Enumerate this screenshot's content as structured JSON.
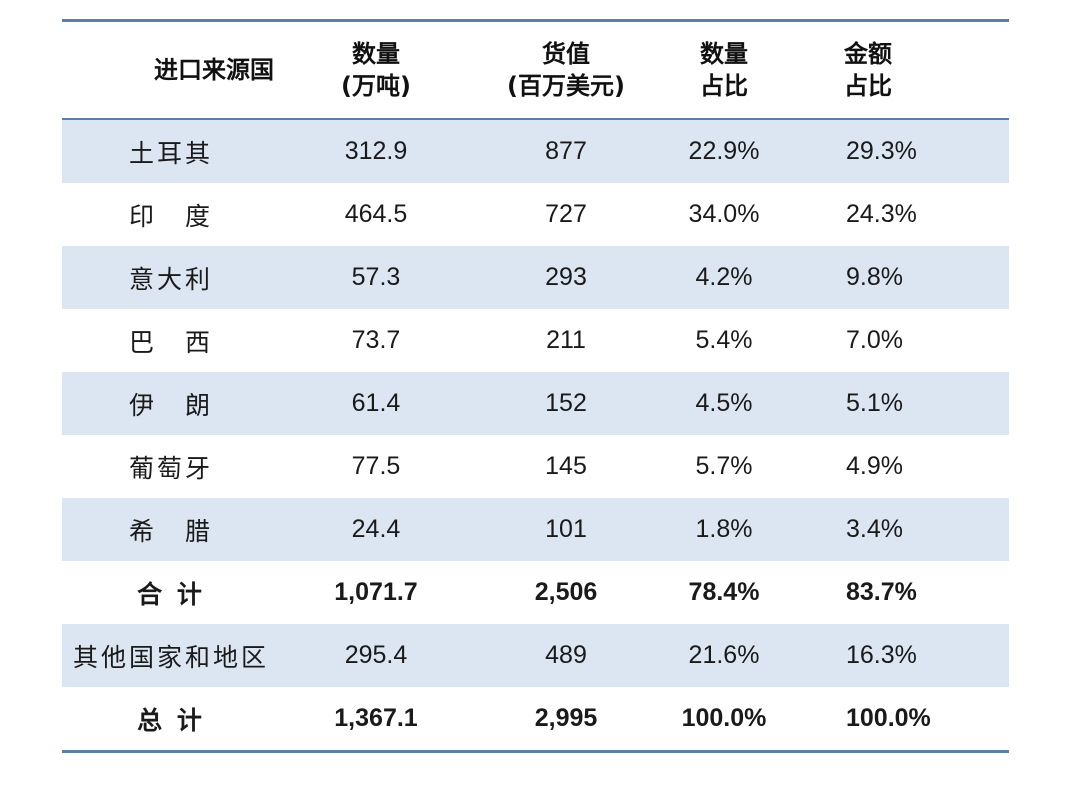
{
  "headers": [
    [
      "进口来源国"
    ],
    [
      "数量",
      "(万吨)"
    ],
    [
      "货值",
      "(百万美元)"
    ],
    [
      "数量",
      "占比"
    ],
    [
      "金额",
      "占比"
    ]
  ],
  "rows": [
    {
      "country": "土耳其",
      "qty": "312.9",
      "value": "877",
      "qty_share": "22.9%",
      "value_share": "29.3%",
      "shaded": true,
      "bold": false
    },
    {
      "country": "印　度",
      "qty": "464.5",
      "value": "727",
      "qty_share": "34.0%",
      "value_share": "24.3%",
      "shaded": false,
      "bold": false
    },
    {
      "country": "意大利",
      "qty": "57.3",
      "value": "293",
      "qty_share": "4.2%",
      "value_share": "9.8%",
      "shaded": true,
      "bold": false
    },
    {
      "country": "巴　西",
      "qty": "73.7",
      "value": "211",
      "qty_share": "5.4%",
      "value_share": "7.0%",
      "shaded": false,
      "bold": false
    },
    {
      "country": "伊　朗",
      "qty": "61.4",
      "value": "152",
      "qty_share": "4.5%",
      "value_share": "5.1%",
      "shaded": true,
      "bold": false
    },
    {
      "country": "葡萄牙",
      "qty": "77.5",
      "value": "145",
      "qty_share": "5.7%",
      "value_share": "4.9%",
      "shaded": false,
      "bold": false
    },
    {
      "country": "希　腊",
      "qty": "24.4",
      "value": "101",
      "qty_share": "1.8%",
      "value_share": "3.4%",
      "shaded": true,
      "bold": false
    },
    {
      "country": "合 计",
      "qty": "1,071.7",
      "value": "2,506",
      "qty_share": "78.4%",
      "value_share": "83.7%",
      "shaded": false,
      "bold": true
    },
    {
      "country": "其他国家和地区",
      "qty": "295.4",
      "value": "489",
      "qty_share": "21.6%",
      "value_share": "16.3%",
      "shaded": true,
      "bold": false
    },
    {
      "country": "总 计",
      "qty": "1,367.1",
      "value": "2,995",
      "qty_share": "100.0%",
      "value_share": "100.0%",
      "shaded": false,
      "bold": true
    }
  ],
  "colors": {
    "rule": "#5b7fa6",
    "shaded_row": "#dce6f2"
  }
}
